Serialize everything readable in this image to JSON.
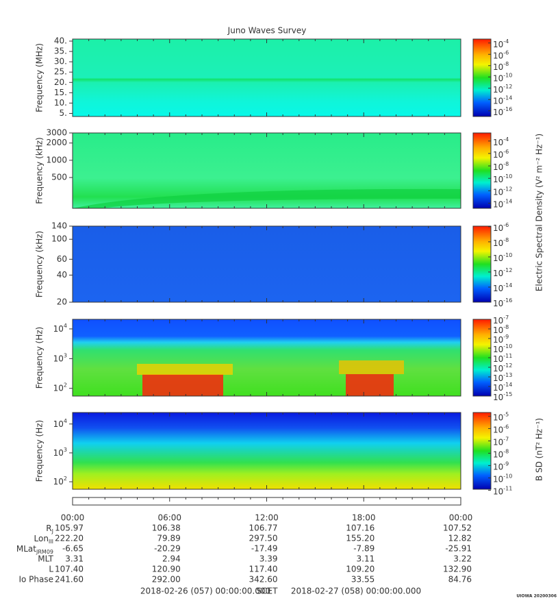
{
  "title": "Juno Waves Survey",
  "colorbar_labels": [
    "Electric Spectral Density (V² m⁻² Hz⁻¹)",
    "B SD (nT² Hz⁻¹)"
  ],
  "chart_data": [
    {
      "type": "spectrogram",
      "ylabel": "Frequency (MHz)",
      "yscale": "linear",
      "ylim": [
        3.5,
        41
      ],
      "yticks": [
        {
          "value": 5,
          "label": "5."
        },
        {
          "value": 10,
          "label": "10."
        },
        {
          "value": 15,
          "label": "15."
        },
        {
          "value": 20,
          "label": "20."
        },
        {
          "value": 25,
          "label": "25."
        },
        {
          "value": 30,
          "label": "30."
        },
        {
          "value": 35,
          "label": "35."
        },
        {
          "value": 40,
          "label": "40."
        }
      ],
      "clim": [
        1e-17,
        0.0005
      ],
      "cticks": [
        {
          "value": 0.0001,
          "base": "10",
          "exponent": "-4"
        },
        {
          "value": 1e-06,
          "base": "10",
          "exponent": "-6"
        },
        {
          "value": 1e-08,
          "base": "10",
          "exponent": "-8"
        },
        {
          "value": 1e-10,
          "base": "10",
          "exponent": "-10"
        },
        {
          "value": 1e-12,
          "base": "10",
          "exponent": "-12"
        },
        {
          "value": 1e-14,
          "base": "10",
          "exponent": "-14"
        },
        {
          "value": 1e-16,
          "base": "10",
          "exponent": "-16"
        }
      ]
    },
    {
      "type": "spectrogram",
      "ylabel": "Frequency (kHz)",
      "yscale": "log",
      "ylim": [
        145,
        3000
      ],
      "yticks": [
        500,
        1000,
        2000,
        3000
      ],
      "clim": [
        1.5e-15,
        0.002
      ],
      "cticks": [
        {
          "value": 0.0001,
          "base": "10",
          "exponent": "-4"
        },
        {
          "value": 1e-06,
          "base": "10",
          "exponent": "-6"
        },
        {
          "value": 1e-08,
          "base": "10",
          "exponent": "-8"
        },
        {
          "value": 1e-10,
          "base": "10",
          "exponent": "-10"
        },
        {
          "value": 1e-12,
          "base": "10",
          "exponent": "-12"
        },
        {
          "value": 1e-14,
          "base": "10",
          "exponent": "-14"
        }
      ]
    },
    {
      "type": "spectrogram",
      "ylabel": "Frequency (kHz)",
      "yscale": "log",
      "ylim": [
        20,
        140
      ],
      "yticks": [
        20,
        40,
        60,
        100,
        140
      ],
      "clim": [
        1e-16,
        1.2e-06
      ],
      "cticks": [
        {
          "value": 1e-06,
          "base": "10",
          "exponent": "-6"
        },
        {
          "value": 1e-08,
          "base": "10",
          "exponent": "-8"
        },
        {
          "value": 1e-10,
          "base": "10",
          "exponent": "-10"
        },
        {
          "value": 1e-12,
          "base": "10",
          "exponent": "-12"
        },
        {
          "value": 1e-14,
          "base": "10",
          "exponent": "-14"
        },
        {
          "value": 1e-16,
          "base": "10",
          "exponent": "-16"
        }
      ]
    },
    {
      "type": "spectrogram",
      "ylabel": "Frequency (Hz)",
      "yscale": "log",
      "ylim": [
        55,
        21000
      ],
      "yticks": [
        {
          "value": 100,
          "base": "10",
          "exponent": "2"
        },
        {
          "value": 1000,
          "base": "10",
          "exponent": "3"
        },
        {
          "value": 10000,
          "base": "10",
          "exponent": "4"
        }
      ],
      "clim": [
        1e-15,
        1e-07
      ],
      "cticks": [
        {
          "value": 1e-07,
          "base": "10",
          "exponent": "-7"
        },
        {
          "value": 1e-08,
          "base": "10",
          "exponent": "-8"
        },
        {
          "value": 1e-09,
          "base": "10",
          "exponent": "-9"
        },
        {
          "value": 1e-10,
          "base": "10",
          "exponent": "-10"
        },
        {
          "value": 1e-11,
          "base": "10",
          "exponent": "-11"
        },
        {
          "value": 1e-12,
          "base": "10",
          "exponent": "-12"
        },
        {
          "value": 1e-13,
          "base": "10",
          "exponent": "-13"
        },
        {
          "value": 1e-14,
          "base": "10",
          "exponent": "-14"
        },
        {
          "value": 1e-15,
          "base": "10",
          "exponent": "-15"
        }
      ]
    },
    {
      "type": "spectrogram",
      "ylabel": "Frequency (Hz)",
      "yscale": "log",
      "ylim": [
        55,
        25000
      ],
      "yticks": [
        {
          "value": 100,
          "base": "10",
          "exponent": "2"
        },
        {
          "value": 1000,
          "base": "10",
          "exponent": "3"
        },
        {
          "value": 10000,
          "base": "10",
          "exponent": "4"
        }
      ],
      "clim": [
        1.2e-11,
        2e-05
      ],
      "cticks": [
        {
          "value": 1e-05,
          "base": "10",
          "exponent": "-5"
        },
        {
          "value": 1e-06,
          "base": "10",
          "exponent": "-6"
        },
        {
          "value": 1e-07,
          "base": "10",
          "exponent": "-7"
        },
        {
          "value": 1e-08,
          "base": "10",
          "exponent": "-8"
        },
        {
          "value": 1e-09,
          "base": "10",
          "exponent": "-9"
        },
        {
          "value": 1e-10,
          "base": "10",
          "exponent": "-10"
        },
        {
          "value": 1e-11,
          "base": "10",
          "exponent": "-11"
        }
      ]
    }
  ],
  "time_ticks": [
    "00:00",
    "06:00",
    "12:00",
    "18:00",
    "00:00"
  ],
  "ephemeris": [
    {
      "label": {
        "text": "R",
        "sub": "J"
      },
      "values": [
        "105.97",
        "106.38",
        "106.77",
        "107.16",
        "107.52"
      ]
    },
    {
      "label": {
        "text": "Lon",
        "sub": "III"
      },
      "values": [
        "222.20",
        "79.89",
        "297.50",
        "155.20",
        "12.82"
      ]
    },
    {
      "label": {
        "text": "MLat",
        "sub": "JRM09"
      },
      "values": [
        "-6.65",
        "-20.29",
        "-17.49",
        "-7.89",
        "-25.91"
      ]
    },
    {
      "label": {
        "text": "MLT"
      },
      "values": [
        "3.31",
        "2.94",
        "3.39",
        "3.11",
        "3.22"
      ]
    },
    {
      "label": {
        "text": "L"
      },
      "values": [
        "107.40",
        "120.90",
        "117.40",
        "109.20",
        "132.90"
      ]
    },
    {
      "label": {
        "text": "Io Phase"
      },
      "values": [
        "241.60",
        "292.00",
        "342.60",
        "33.55",
        "84.76"
      ]
    }
  ],
  "footer": {
    "start": "2018-02-26 (057) 00:00:00.000",
    "center": "SCET",
    "end": "2018-02-27 (058) 00:00:00.000"
  },
  "stamp": "UIOWA 20200306"
}
